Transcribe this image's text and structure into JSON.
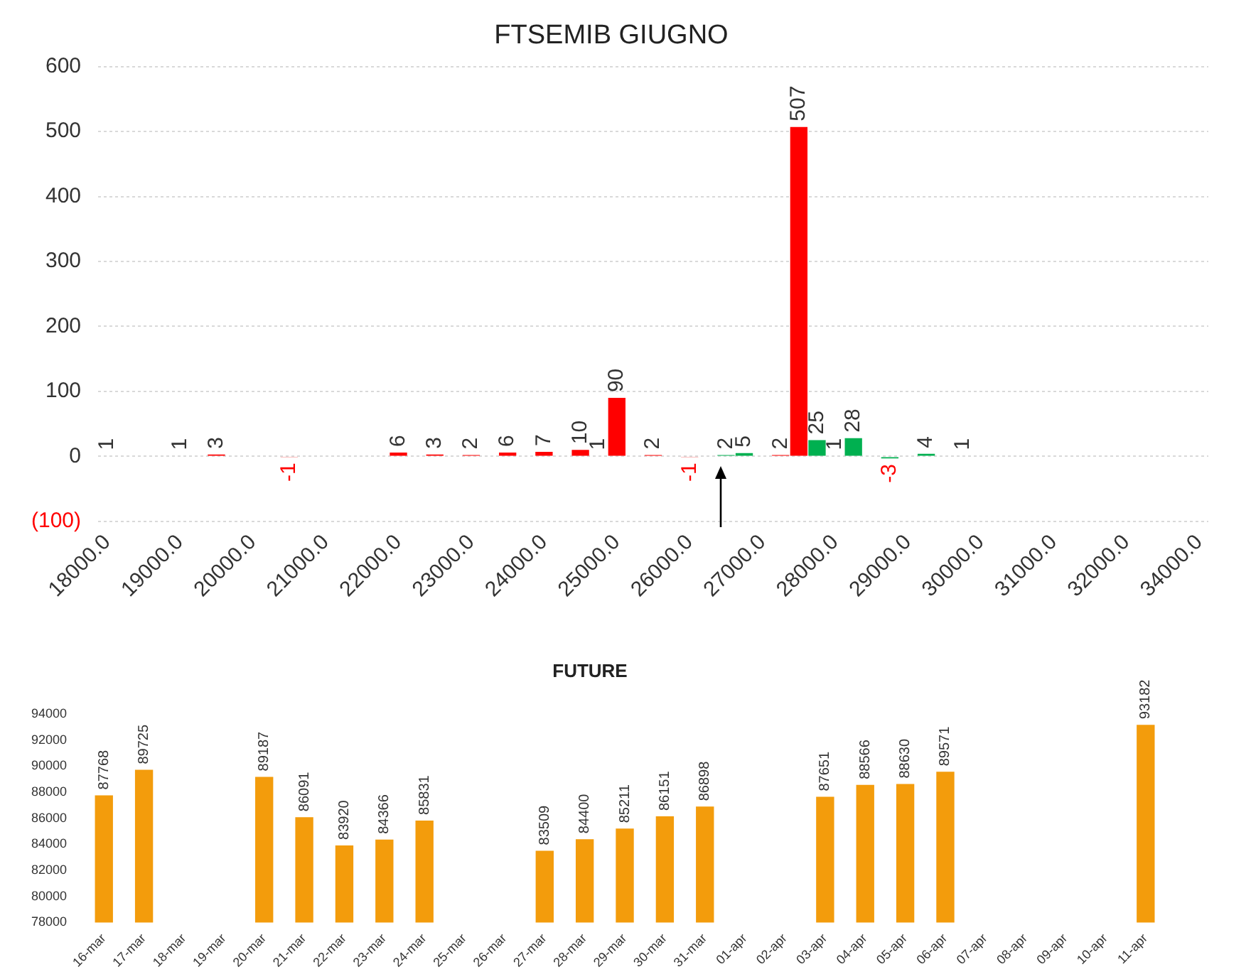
{
  "chart_data": [
    {
      "type": "bar",
      "title": "FTSEMIB GIUGNO",
      "categories": [
        "18000.0",
        null,
        null,
        null,
        "19000.0",
        null,
        null,
        null,
        "20000.0",
        null,
        null,
        null,
        "21000.0",
        null,
        null,
        null,
        "22000.0",
        null,
        null,
        null,
        "23000.0",
        null,
        null,
        null,
        "24000.0",
        null,
        null,
        null,
        "25000.0",
        null,
        null,
        null,
        "26000.0",
        null,
        null,
        null,
        "27000.0",
        null,
        null,
        null,
        "28000.0",
        null,
        null,
        null,
        "29000.0",
        null,
        null,
        null,
        "30000.0",
        null,
        null,
        null,
        "31000.0",
        null,
        null,
        null,
        "32000.0",
        null,
        null,
        null,
        "34000.0"
      ],
      "values": [
        1,
        null,
        null,
        null,
        1,
        null,
        3,
        null,
        null,
        null,
        -1,
        null,
        null,
        null,
        null,
        null,
        6,
        null,
        3,
        null,
        2,
        null,
        6,
        null,
        7,
        null,
        10,
        1,
        90,
        null,
        2,
        null,
        -1,
        null,
        2,
        5,
        null,
        2,
        507,
        25,
        1,
        28,
        null,
        -3,
        null,
        4,
        null,
        1,
        null,
        null,
        null,
        null,
        null,
        null,
        null,
        null,
        null,
        null,
        null,
        null,
        null
      ],
      "colors": [
        "#ff0000",
        null,
        null,
        null,
        "#ff0000",
        null,
        "#ff0000",
        null,
        null,
        null,
        "#ff0000",
        null,
        null,
        null,
        null,
        null,
        "#ff0000",
        null,
        "#ff0000",
        null,
        "#ff0000",
        null,
        "#ff0000",
        null,
        "#ff0000",
        null,
        "#ff0000",
        "#ff0000",
        "#ff0000",
        null,
        "#ff0000",
        null,
        "#ff0000",
        null,
        "#00b050",
        "#00b050",
        null,
        "#ff0000",
        "#ff0000",
        "#00b050",
        "#00b050",
        "#00b050",
        null,
        "#00b050",
        null,
        "#00b050",
        null,
        "#00b050",
        null,
        null,
        null,
        null,
        null,
        null,
        null,
        null,
        null,
        null,
        null,
        null,
        null
      ],
      "ylim": [
        -100,
        600
      ],
      "yticks": [
        {
          "value": -100,
          "label": "(100)"
        },
        0,
        100,
        200,
        300,
        400,
        500,
        600
      ],
      "grid": "y",
      "data_labels": true
    },
    {
      "type": "bar",
      "title": "FUTURE",
      "categories": [
        "16-mar",
        "17-mar",
        "18-mar",
        "19-mar",
        "20-mar",
        "21-mar",
        "22-mar",
        "23-mar",
        "24-mar",
        "25-mar",
        "26-mar",
        "27-mar",
        "28-mar",
        "29-mar",
        "30-mar",
        "31-mar",
        "01-apr",
        "02-apr",
        "03-apr",
        "04-apr",
        "05-apr",
        "06-apr",
        "07-apr",
        "08-apr",
        "09-apr",
        "10-apr",
        "11-apr"
      ],
      "values": [
        87768,
        89725,
        null,
        null,
        89187,
        86091,
        83920,
        84366,
        85831,
        null,
        null,
        83509,
        84400,
        85211,
        86151,
        86898,
        null,
        null,
        87651,
        88566,
        88630,
        89571,
        null,
        null,
        null,
        null,
        93182
      ],
      "color": "#f39c0c",
      "ylim": [
        78000,
        94000
      ],
      "yticks": [
        78000,
        80000,
        82000,
        84000,
        86000,
        88000,
        90000,
        92000,
        94000
      ],
      "data_labels": true
    }
  ]
}
